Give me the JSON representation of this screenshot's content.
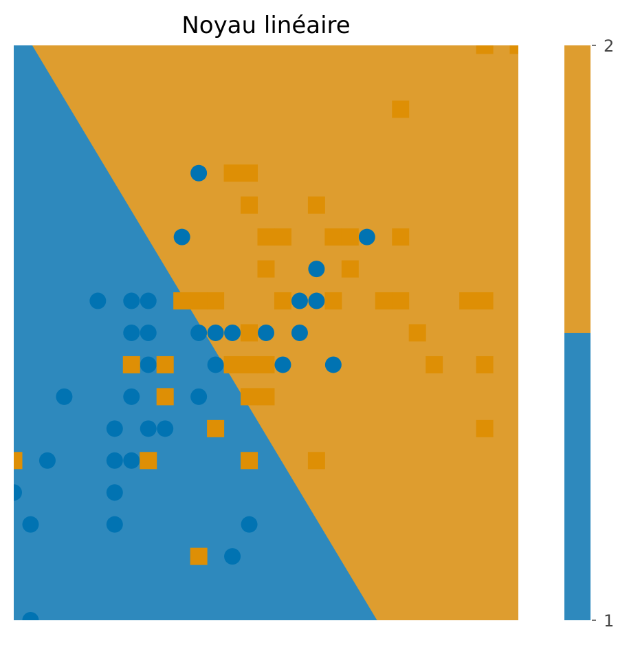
{
  "chart_data": {
    "type": "scatter",
    "title": "Noyau linéaire",
    "xlabel": "",
    "ylabel": "",
    "axes_visible": false,
    "grid": false,
    "xlim": [
      0,
      30
    ],
    "ylim": [
      0,
      18
    ],
    "decision_boundary": {
      "description": "linear kernel classifier regions",
      "line": [
        [
          1.1,
          18
        ],
        [
          21.6,
          0
        ]
      ],
      "class_left": 1,
      "class_right": 2
    },
    "colorbar": {
      "position": "right",
      "ticks": [
        "1",
        "2"
      ],
      "segments": [
        {
          "class": 1,
          "from": 1.0,
          "to": 1.5,
          "color": "#2e89bd"
        },
        {
          "class": 2,
          "from": 1.5,
          "to": 2.0,
          "color": "#de9d2f"
        }
      ]
    },
    "colors": {
      "region_class1": "#2e89bd",
      "region_class2": "#de9d2f",
      "point_class1": "#0173b2",
      "point_class2": "#de8f05"
    },
    "series": [
      {
        "class": 1,
        "marker": "circle",
        "points": [
          [
            11,
            14
          ],
          [
            10,
            12
          ],
          [
            15,
            12
          ],
          [
            21,
            12
          ],
          [
            18,
            11
          ],
          [
            5,
            10
          ],
          [
            7,
            10
          ],
          [
            8,
            10
          ],
          [
            12,
            10
          ],
          [
            17,
            10
          ],
          [
            18,
            10
          ],
          [
            7,
            9
          ],
          [
            8,
            9
          ],
          [
            11,
            9
          ],
          [
            12,
            9
          ],
          [
            13,
            9
          ],
          [
            15,
            9
          ],
          [
            17,
            9
          ],
          [
            8,
            8
          ],
          [
            12,
            8
          ],
          [
            16,
            8
          ],
          [
            19,
            8
          ],
          [
            3,
            7
          ],
          [
            7,
            7
          ],
          [
            11,
            7
          ],
          [
            6,
            6
          ],
          [
            8,
            6
          ],
          [
            9,
            6
          ],
          [
            2,
            5
          ],
          [
            6,
            5
          ],
          [
            7,
            5
          ],
          [
            0,
            4
          ],
          [
            6,
            4
          ],
          [
            1,
            3
          ],
          [
            6,
            3
          ],
          [
            14,
            3
          ],
          [
            13,
            2
          ],
          [
            1,
            0
          ]
        ]
      },
      {
        "class": 2,
        "marker": "square",
        "points": [
          [
            28,
            18
          ],
          [
            30,
            18
          ],
          [
            23,
            16
          ],
          [
            13,
            14
          ],
          [
            14,
            14
          ],
          [
            14,
            13
          ],
          [
            18,
            13
          ],
          [
            15,
            12
          ],
          [
            16,
            12
          ],
          [
            19,
            12
          ],
          [
            20,
            12
          ],
          [
            23,
            12
          ],
          [
            15,
            11
          ],
          [
            20,
            11
          ],
          [
            10,
            10
          ],
          [
            11,
            10
          ],
          [
            12,
            10
          ],
          [
            16,
            10
          ],
          [
            19,
            10
          ],
          [
            22,
            10
          ],
          [
            23,
            10
          ],
          [
            27,
            10
          ],
          [
            28,
            10
          ],
          [
            14,
            9
          ],
          [
            24,
            9
          ],
          [
            7,
            8
          ],
          [
            9,
            8
          ],
          [
            13,
            8
          ],
          [
            14,
            8
          ],
          [
            15,
            8
          ],
          [
            25,
            8
          ],
          [
            28,
            8
          ],
          [
            9,
            7
          ],
          [
            14,
            7
          ],
          [
            15,
            7
          ],
          [
            12,
            6
          ],
          [
            28,
            6
          ],
          [
            0,
            5
          ],
          [
            8,
            5
          ],
          [
            14,
            5
          ],
          [
            18,
            5
          ],
          [
            11,
            2
          ]
        ]
      }
    ]
  }
}
